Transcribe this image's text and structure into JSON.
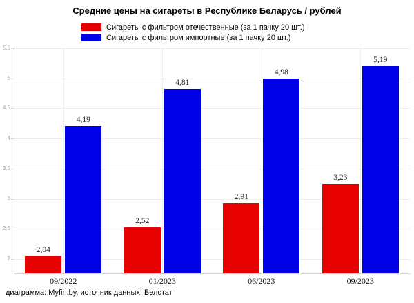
{
  "title": "Средние цены на сигареты в Республике Беларусь / рублей",
  "source_note": "диаграмма: Myfin.by, источник данных: Белстат",
  "colors": {
    "domestic_red": "#e60000",
    "imported_blue": "#0000e6",
    "gridline": "#ededed",
    "axis_line": "#d6d6d6",
    "tick_label": "#a6a6a6",
    "background": "#ffffff"
  },
  "chart_data": {
    "type": "bar",
    "title": "Средние цены на сигареты в Республике Беларусь / рублей",
    "xlabel": "",
    "ylabel": "",
    "grid": true,
    "legend_position": "top",
    "categories": [
      "09/2022",
      "01/2023",
      "06/2023",
      "09/2023"
    ],
    "series": [
      {
        "name": "Сигареты с фильтром отечественные (за 1 пачку 20 шт.)",
        "color": "#e60000",
        "values": [
          2.04,
          2.52,
          2.91,
          3.23
        ],
        "labels": [
          "2,04",
          "2,52",
          "2,91",
          "3,23"
        ]
      },
      {
        "name": "Сигареты с фильтром импортные (за 1 пачку 20 шт.)",
        "color": "#0000e6",
        "values": [
          4.19,
          4.81,
          4.98,
          5.19
        ],
        "labels": [
          "4,19",
          "4,81",
          "4,98",
          "5,19"
        ]
      }
    ],
    "y_axis": {
      "min": 1.75,
      "max": 5.52,
      "ticks": [
        2,
        2.5,
        3,
        3.5,
        4,
        4.5,
        5,
        5.5
      ],
      "tick_labels": [
        "2",
        "2.5",
        "3",
        "3.5",
        "4",
        "4.5",
        "5",
        "5.5"
      ]
    }
  }
}
